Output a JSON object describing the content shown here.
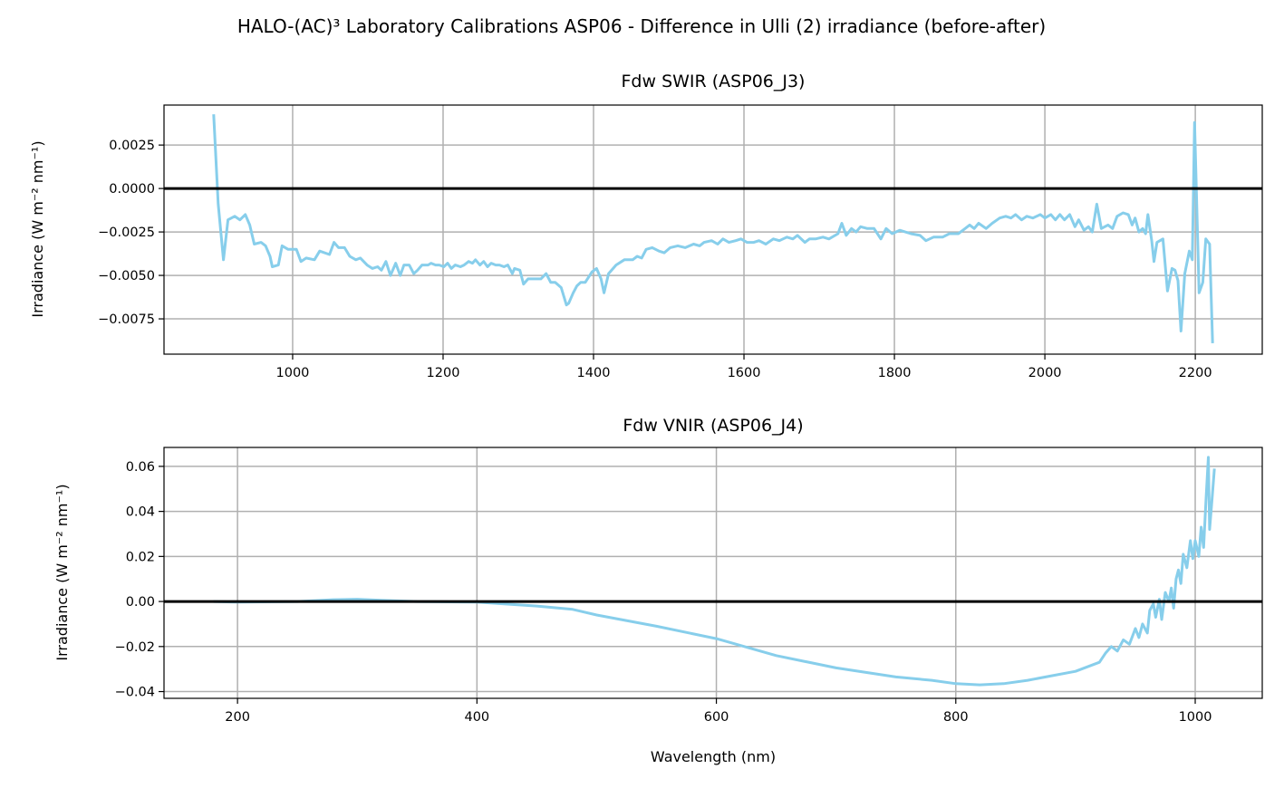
{
  "title": "HALO-(AC)³ Laboratory Calibrations ASP06 - Difference in Ulli (2) irradiance (before-after)",
  "colors": {
    "series": "#87ceeb",
    "zero_line": "#000000",
    "grid": "#b0b0b0"
  },
  "chart_data": [
    {
      "type": "line",
      "title": "Fdw SWIR (ASP06_J3)",
      "xlabel": "",
      "ylabel": "Irradiance (W m⁻² nm⁻¹)",
      "xlim": [
        829,
        2289
      ],
      "ylim": [
        -0.00953,
        0.0048
      ],
      "xticks": [
        1000,
        1200,
        1400,
        1600,
        1800,
        2000,
        2200
      ],
      "xtick_labels": [
        "1000",
        "1200",
        "1400",
        "1600",
        "1800",
        "2000",
        "2200"
      ],
      "yticks": [
        0.0025,
        0.0,
        -0.0025,
        -0.005,
        -0.0075
      ],
      "ytick_labels": [
        "0.0025",
        "0.0000",
        "−0.0025",
        "−0.0050",
        "−0.0075"
      ],
      "grid": true,
      "reference_line_y": 0,
      "x": [
        895,
        901,
        908,
        914,
        923,
        930,
        937,
        943,
        949,
        958,
        964,
        970,
        973,
        981,
        986,
        994,
        1005,
        1011,
        1018,
        1029,
        1036,
        1049,
        1055,
        1061,
        1069,
        1076,
        1084,
        1090,
        1099,
        1106,
        1113,
        1118,
        1124,
        1130,
        1137,
        1143,
        1148,
        1155,
        1161,
        1166,
        1172,
        1180,
        1184,
        1190,
        1195,
        1201,
        1206,
        1211,
        1216,
        1223,
        1228,
        1234,
        1239,
        1243,
        1249,
        1254,
        1259,
        1264,
        1270,
        1275,
        1281,
        1286,
        1292,
        1295,
        1302,
        1307,
        1313,
        1322,
        1330,
        1337,
        1343,
        1349,
        1357,
        1364,
        1367,
        1373,
        1378,
        1383,
        1389,
        1398,
        1404,
        1410,
        1414,
        1420,
        1430,
        1441,
        1452,
        1458,
        1464,
        1470,
        1478,
        1487,
        1494,
        1502,
        1512,
        1522,
        1533,
        1541,
        1547,
        1557,
        1565,
        1572,
        1580,
        1589,
        1596,
        1604,
        1613,
        1620,
        1629,
        1639,
        1647,
        1657,
        1665,
        1671,
        1681,
        1687,
        1695,
        1705,
        1713,
        1725,
        1730,
        1736,
        1743,
        1749,
        1755,
        1764,
        1773,
        1782,
        1789,
        1797,
        1807,
        1822,
        1834,
        1842,
        1852,
        1864,
        1873,
        1885,
        1894,
        1900,
        1906,
        1912,
        1922,
        1930,
        1940,
        1948,
        1955,
        1961,
        1969,
        1976,
        1984,
        1994,
        2000,
        2008,
        2014,
        2020,
        2026,
        2033,
        2040,
        2045,
        2052,
        2058,
        2063,
        2069,
        2075,
        2084,
        2090,
        2096,
        2104,
        2111,
        2116,
        2120,
        2125,
        2130,
        2134,
        2137,
        2142,
        2145,
        2149,
        2157,
        2163,
        2169,
        2173,
        2177,
        2181,
        2186,
        2192,
        2196,
        2199,
        2205,
        2210,
        2214,
        2219,
        2223
      ],
      "y": [
        0.00427,
        -0.00089,
        -0.0041,
        -0.0018,
        -0.0016,
        -0.0018,
        -0.0015,
        -0.0021,
        -0.0032,
        -0.0031,
        -0.0033,
        -0.0039,
        -0.0045,
        -0.0044,
        -0.0033,
        -0.0035,
        -0.0035,
        -0.0042,
        -0.004,
        -0.0041,
        -0.0036,
        -0.0038,
        -0.0031,
        -0.0034,
        -0.0034,
        -0.0039,
        -0.0041,
        -0.004,
        -0.0044,
        -0.0046,
        -0.0045,
        -0.0047,
        -0.0042,
        -0.005,
        -0.0043,
        -0.005,
        -0.0044,
        -0.0044,
        -0.0049,
        -0.0047,
        -0.0044,
        -0.0044,
        -0.0043,
        -0.0044,
        -0.0044,
        -0.0045,
        -0.0043,
        -0.0046,
        -0.0044,
        -0.0045,
        -0.0044,
        -0.0042,
        -0.0043,
        -0.0041,
        -0.0044,
        -0.0042,
        -0.0045,
        -0.0043,
        -0.0044,
        -0.0044,
        -0.0045,
        -0.0044,
        -0.0049,
        -0.0046,
        -0.0047,
        -0.0055,
        -0.0052,
        -0.0052,
        -0.0052,
        -0.0049,
        -0.0054,
        -0.0054,
        -0.0057,
        -0.0067,
        -0.0066,
        -0.006,
        -0.0056,
        -0.0054,
        -0.0054,
        -0.0048,
        -0.0046,
        -0.0052,
        -0.006,
        -0.0049,
        -0.0044,
        -0.0041,
        -0.0041,
        -0.0039,
        -0.004,
        -0.0035,
        -0.0034,
        -0.0036,
        -0.0037,
        -0.0034,
        -0.0033,
        -0.0034,
        -0.0032,
        -0.0033,
        -0.0031,
        -0.003,
        -0.0032,
        -0.0029,
        -0.0031,
        -0.003,
        -0.0029,
        -0.0031,
        -0.0031,
        -0.003,
        -0.0032,
        -0.0029,
        -0.003,
        -0.0028,
        -0.0029,
        -0.0027,
        -0.0031,
        -0.0029,
        -0.0029,
        -0.0028,
        -0.0029,
        -0.0026,
        -0.002,
        -0.0027,
        -0.0023,
        -0.0025,
        -0.0022,
        -0.0023,
        -0.0023,
        -0.0029,
        -0.0023,
        -0.0026,
        -0.0024,
        -0.0026,
        -0.0027,
        -0.003,
        -0.0028,
        -0.0028,
        -0.0026,
        -0.0026,
        -0.0023,
        -0.0021,
        -0.0023,
        -0.002,
        -0.0023,
        -0.002,
        -0.0017,
        -0.0016,
        -0.0017,
        -0.0015,
        -0.0018,
        -0.0016,
        -0.0017,
        -0.0015,
        -0.0017,
        -0.0015,
        -0.0018,
        -0.0015,
        -0.0018,
        -0.0015,
        -0.0022,
        -0.0018,
        -0.0024,
        -0.0022,
        -0.0025,
        -0.0009,
        -0.0023,
        -0.0021,
        -0.0023,
        -0.0016,
        -0.0014,
        -0.0015,
        -0.0021,
        -0.0017,
        -0.0025,
        -0.0023,
        -0.0026,
        -0.0015,
        -0.003,
        -0.0042,
        -0.0031,
        -0.0029,
        -0.0059,
        -0.0046,
        -0.0047,
        -0.0053,
        -0.0082,
        -0.0049,
        -0.0036,
        -0.0041,
        0.0038,
        -0.006,
        -0.0054,
        -0.0029,
        -0.0032,
        -0.0089
      ]
    },
    {
      "type": "line",
      "title": "Fdw VNIR (ASP06_J4)",
      "xlabel": "Wavelength (nm)",
      "ylabel": "Irradiance (W m⁻² nm⁻¹)",
      "xlim": [
        138.6,
        1056
      ],
      "ylim": [
        -0.043,
        0.0684
      ],
      "xticks": [
        200,
        400,
        600,
        800,
        1000
      ],
      "xtick_labels": [
        "200",
        "400",
        "600",
        "800",
        "1000"
      ],
      "yticks": [
        0.06,
        0.04,
        0.02,
        0.0,
        -0.02,
        -0.04
      ],
      "ytick_labels": [
        "0.06",
        "0.04",
        "0.02",
        "0.00",
        "−0.02",
        "−0.04"
      ],
      "grid": true,
      "reference_line_y": 0,
      "x": [
        180,
        200,
        250,
        280,
        300,
        320,
        350,
        400,
        450,
        480,
        500,
        550,
        600,
        650,
        700,
        750,
        780,
        800,
        820,
        840,
        860,
        880,
        900,
        910,
        920,
        925,
        930,
        935,
        940,
        945,
        950,
        953,
        956,
        960,
        962,
        965,
        967,
        970,
        972,
        975,
        978,
        980,
        982,
        984,
        986,
        988,
        990,
        993,
        996,
        998,
        1000,
        1003,
        1005,
        1007,
        1009,
        1011,
        1012,
        1014,
        1016
      ],
      "y": [
        0,
        -0.0003,
        0,
        0.0008,
        0.001,
        0.0005,
        0,
        -0.0003,
        -0.002,
        -0.0035,
        -0.006,
        -0.011,
        -0.0165,
        -0.024,
        -0.0295,
        -0.0335,
        -0.035,
        -0.0365,
        -0.037,
        -0.0365,
        -0.035,
        -0.033,
        -0.031,
        -0.029,
        -0.027,
        -0.023,
        -0.02,
        -0.022,
        -0.017,
        -0.019,
        -0.012,
        -0.016,
        -0.01,
        -0.014,
        -0.004,
        -0.001,
        -0.007,
        0.001,
        -0.008,
        0.004,
        0.0,
        0.006,
        -0.003,
        0.01,
        0.014,
        0.008,
        0.021,
        0.015,
        0.027,
        0.019,
        0.027,
        0.02,
        0.033,
        0.024,
        0.045,
        0.064,
        0.032,
        0.045,
        0.059
      ]
    }
  ]
}
